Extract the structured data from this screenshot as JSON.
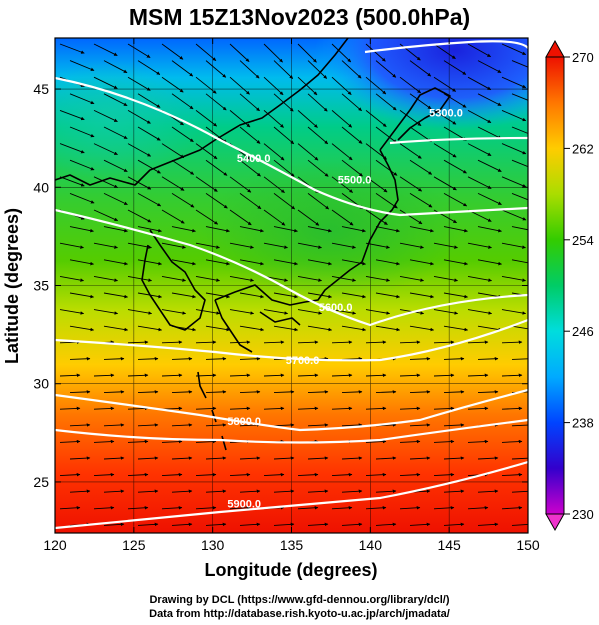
{
  "title": "MSM 15Z13Nov2023 (500.0hPa)",
  "xaxis": {
    "label": "Longitude (degrees)",
    "min": 120,
    "max": 150,
    "ticks": [
      "120",
      "125",
      "130",
      "135",
      "140",
      "145",
      "150"
    ]
  },
  "yaxis": {
    "label": "Latitude (degrees)",
    "min": 22.4,
    "max": 47.6,
    "ticks": [
      "25",
      "30",
      "35",
      "40",
      "45"
    ]
  },
  "colorbar": {
    "min": 230,
    "max": 270,
    "ticks": [
      "230",
      "238",
      "246",
      "254",
      "262",
      "270"
    ],
    "colors": [
      "#cc00cc",
      "#3300cc",
      "#0044ff",
      "#00aaff",
      "#00dddd",
      "#00cc66",
      "#33cc00",
      "#aadd00",
      "#ffcc00",
      "#ff7700",
      "#ee1100"
    ]
  },
  "contours": [
    {
      "label": "5300.0",
      "lon": 144.8,
      "lat": 43.6
    },
    {
      "label": "5400.0",
      "lon": 132.6,
      "lat": 41.3
    },
    {
      "label": "5500.0",
      "lon": 139.0,
      "lat": 40.2
    },
    {
      "label": "5600.0",
      "lon": 137.8,
      "lat": 33.7
    },
    {
      "label": "5700.0",
      "lon": 135.7,
      "lat": 31.0
    },
    {
      "label": "5800.0",
      "lon": 132.0,
      "lat": 27.9
    },
    {
      "label": "5900.0",
      "lon": 132.0,
      "lat": 23.7
    }
  ],
  "credits": {
    "line1": "Drawing by DCL (https://www.gfd-dennou.org/library/dcl/)",
    "line2": "Data from http://database.rish.kyoto-u.ac.jp/arch/jmadata/"
  }
}
